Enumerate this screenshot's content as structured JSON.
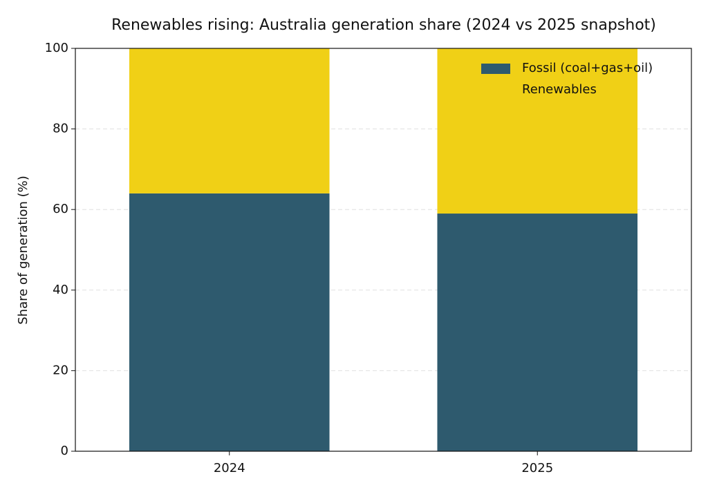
{
  "chart_data": {
    "type": "stacked_bar",
    "title": "Renewables rising: Australia generation share (2024 vs 2025 snapshot)",
    "y_label": "Share of generation (%)",
    "categories": [
      "2024",
      "2025"
    ],
    "series": [
      {
        "name": "Fossil (coal+gas+oil)",
        "color": "#2e5a6e",
        "values": [
          64,
          59
        ]
      },
      {
        "name": "Renewables",
        "color": "#f0d016",
        "values": [
          36,
          41
        ]
      }
    ],
    "ylim": [
      0,
      100
    ],
    "yticks": [
      0,
      20,
      40,
      60,
      80,
      100
    ],
    "grid": true,
    "legend": "upper right"
  }
}
